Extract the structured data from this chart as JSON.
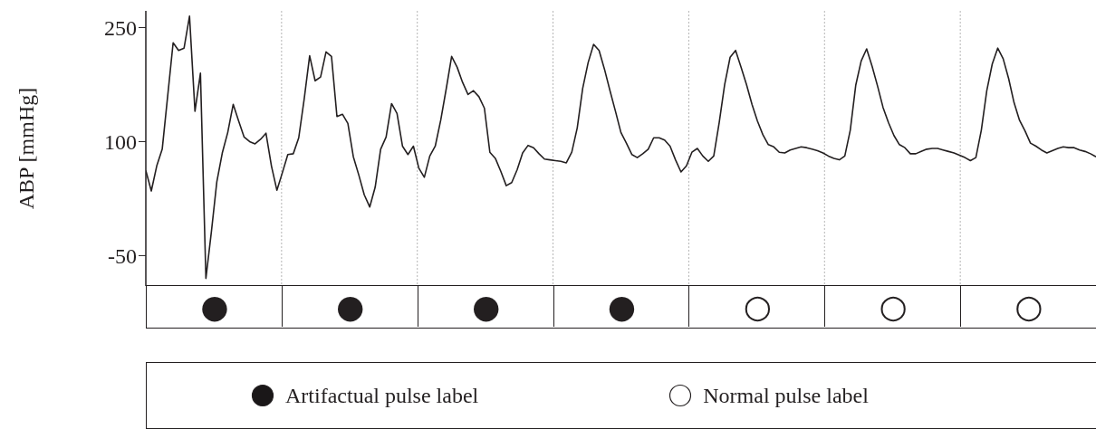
{
  "chart_data": [
    {
      "type": "line",
      "ylabel": "ABP [mmHg]",
      "ylim": [
        -90,
        272
      ],
      "yticks": [
        -50,
        100,
        250
      ],
      "grid": "x",
      "categories": [
        null,
        null,
        null,
        null,
        null,
        null,
        null,
        null,
        null,
        null,
        null,
        null,
        null,
        null,
        null,
        null,
        null,
        null,
        null,
        null,
        null,
        null,
        null,
        null,
        null,
        null,
        null,
        null,
        null,
        null,
        null,
        null,
        null,
        null,
        null,
        null,
        null,
        null,
        null,
        null,
        null,
        null,
        null,
        null,
        null,
        null,
        null,
        null,
        null,
        null,
        null,
        null,
        null,
        null,
        null,
        null,
        null,
        null,
        null,
        null,
        null,
        null,
        null,
        null,
        null,
        null,
        null,
        null,
        null,
        null,
        null,
        null,
        null,
        null,
        null,
        null,
        null,
        null,
        null,
        null,
        null,
        null,
        null,
        null,
        null,
        null,
        null,
        null,
        null,
        null,
        null,
        null,
        null,
        null,
        null,
        null,
        null,
        null,
        null,
        null,
        null,
        null,
        null,
        null,
        null,
        null,
        null,
        null,
        null,
        null,
        null,
        null,
        null,
        null,
        null,
        null,
        null,
        null,
        null,
        null,
        null,
        null,
        null,
        null,
        null,
        null,
        null,
        null,
        null,
        null,
        null,
        null,
        null,
        null,
        null,
        null,
        null,
        null,
        null,
        null,
        null,
        null,
        null,
        null,
        null,
        null,
        null,
        null,
        null,
        null,
        null,
        null,
        null,
        null,
        null,
        null,
        null,
        null,
        null,
        null,
        null,
        null,
        null,
        null,
        null,
        null,
        null,
        null,
        null,
        null,
        null,
        null,
        null,
        null,
        null
      ],
      "series": [
        {
          "color": "#231f20",
          "values": [
            62,
            35,
            68,
            90,
            160,
            230,
            220,
            223,
            265,
            140,
            190,
            -80,
            -19,
            47,
            85,
            112,
            149,
            127,
            106,
            100,
            97,
            103,
            111,
            68,
            36,
            59,
            83,
            84,
            105,
            156,
            213,
            180,
            185,
            218,
            212,
            133,
            136,
            124,
            80,
            56,
            30,
            14,
            40,
            90,
            106,
            150,
            137,
            94,
            83,
            94,
            65,
            53,
            81,
            94,
            128,
            169,
            212,
            198,
            178,
            162,
            167,
            159,
            144,
            86,
            78,
            61,
            42,
            46,
            63,
            85,
            95,
            92,
            84,
            77,
            76,
            75,
            74,
            72,
            86,
            118,
            170,
            204,
            228,
            220,
            195,
            167,
            140,
            112,
            98,
            83,
            79,
            84,
            90,
            105,
            105,
            102,
            94,
            76,
            60,
            68,
            86,
            91,
            81,
            74,
            81,
            125,
            175,
            211,
            220,
            198,
            175,
            149,
            127,
            109,
            96,
            93,
            86,
            85,
            89,
            91,
            93,
            92,
            90,
            88,
            85,
            81,
            78,
            76,
            81,
            115,
            174,
            206,
            222,
            199,
            173,
            145,
            125,
            108,
            96,
            92,
            84,
            84,
            87,
            90,
            91,
            91,
            89,
            87,
            85,
            82,
            79,
            75,
            79,
            115,
            167,
            202,
            223,
            209,
            183,
            151,
            128,
            114,
            98,
            94,
            89,
            85,
            88,
            91,
            93,
            92,
            92,
            89,
            87,
            84,
            80
          ]
        }
      ]
    },
    {
      "type": "other",
      "legend": "bottom",
      "annotations": [
        "●",
        "●",
        "●",
        "●",
        "○",
        "○",
        "○"
      ],
      "series": [
        {
          "name": "Artifactual pulse label",
          "color": "#1a1718"
        },
        {
          "name": "Normal pulse label",
          "color": "#ffffff"
        }
      ]
    }
  ]
}
